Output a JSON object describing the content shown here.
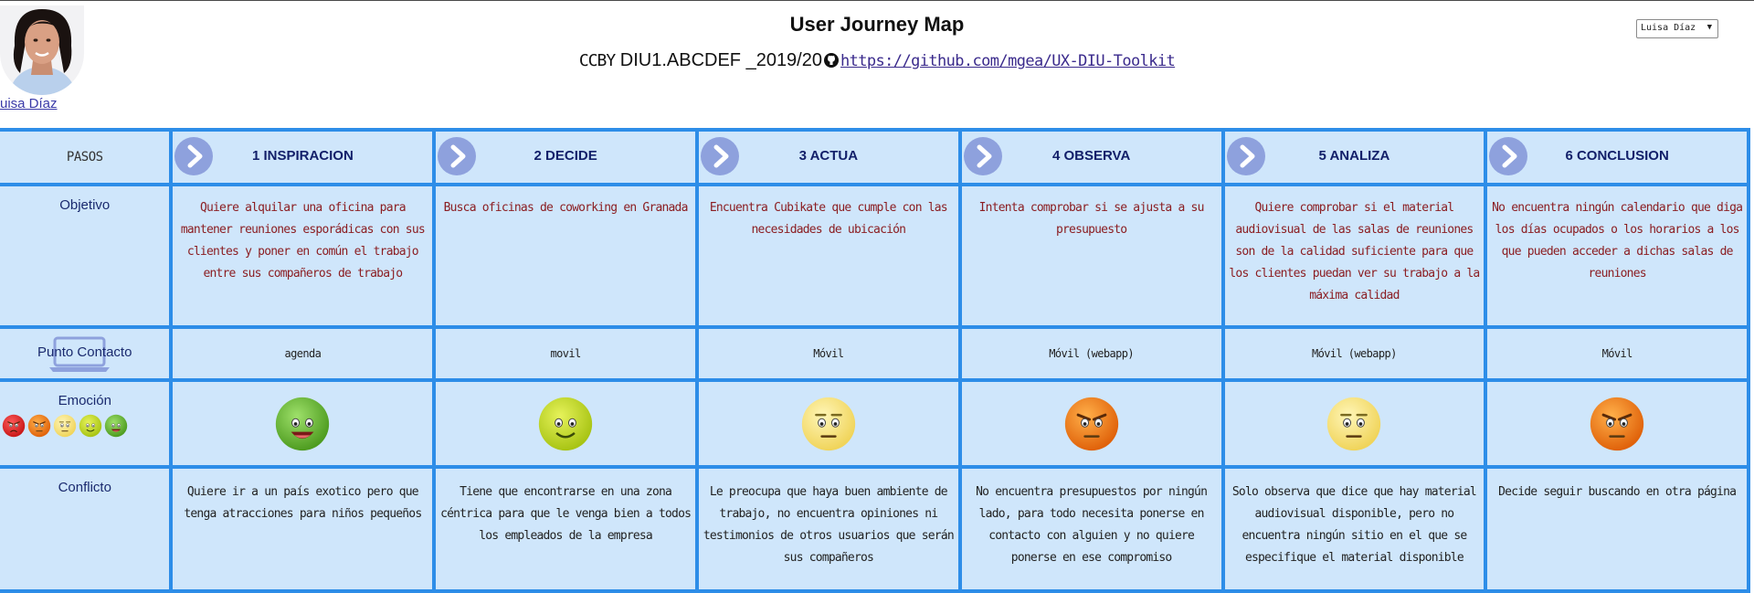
{
  "header": {
    "title": "User Journey Map",
    "license": "CCBY",
    "course": "DIU1.ABCDEF _2019/20",
    "repo_link": "https://github.com/mgea/UX-DIU-Toolkit"
  },
  "persona": {
    "name_link": "uisa Díaz",
    "selector_value": "Luisa Díaz"
  },
  "colors": {
    "grid_border": "#2d8de8",
    "cell_bg": "#cfe6fb",
    "step_button": "#8ea1dd",
    "goal_text": "#8b1e22"
  },
  "row_labels": {
    "steps": "PASOS",
    "goal": "Objetivo",
    "touchpoint": "Punto Contacto",
    "emotion": "Emoción",
    "conflict": "Conflicto"
  },
  "emotion_scale": [
    "angry",
    "annoyed",
    "neutral",
    "content",
    "happy"
  ],
  "steps": [
    {
      "title": "1 INSPIRACION",
      "goal": "Quiere alquilar una oficina para mantener reuniones esporádicas con sus clientes y poner en común el trabajo entre sus compañeros de trabajo",
      "touchpoint": "agenda",
      "emotion": "happy",
      "conflict": "Quiere ir a un país exotico pero que tenga atracciones para niños pequeños"
    },
    {
      "title": "2 DECIDE",
      "goal": "Busca oficinas de coworking en Granada",
      "touchpoint": "movil",
      "emotion": "content",
      "conflict": "Tiene que encontrarse en una zona céntrica para que le venga bien a todos los empleados de la empresa"
    },
    {
      "title": "3 ACTUA",
      "goal": "Encuentra Cubikate que cumple con las necesidades de ubicación",
      "touchpoint": "Móvil",
      "emotion": "neutral",
      "conflict": "Le preocupa que haya buen ambiente de trabajo, no encuentra opiniones ni testimonios de otros usuarios que serán sus compañeros"
    },
    {
      "title": "4 OBSERVA",
      "goal": "Intenta comprobar si se ajusta a su presupuesto",
      "touchpoint": "Móvil (webapp)",
      "emotion": "annoyed",
      "conflict": "No encuentra presupuestos por ningún lado, para todo necesita ponerse en contacto con alguien y no quiere ponerse en ese compromiso"
    },
    {
      "title": "5 ANALIZA",
      "goal": "Quiere comprobar si el material audiovisual de las salas de reuniones son de la calidad suficiente para que los clientes puedan ver su trabajo a la máxima calidad",
      "touchpoint": "Móvil (webapp)",
      "emotion": "neutral",
      "conflict": "Solo observa que dice que hay material audiovisual disponible, pero no encuentra ningún sitio en el que se especifique el material disponible"
    },
    {
      "title": "6 CONCLUSION",
      "goal": "No encuentra ningún calendario que diga los días ocupados o los horarios a los que pueden acceder a dichas salas de reuniones",
      "touchpoint": "Móvil",
      "emotion": "annoyed",
      "conflict": "Decide seguir buscando en otra página"
    }
  ]
}
